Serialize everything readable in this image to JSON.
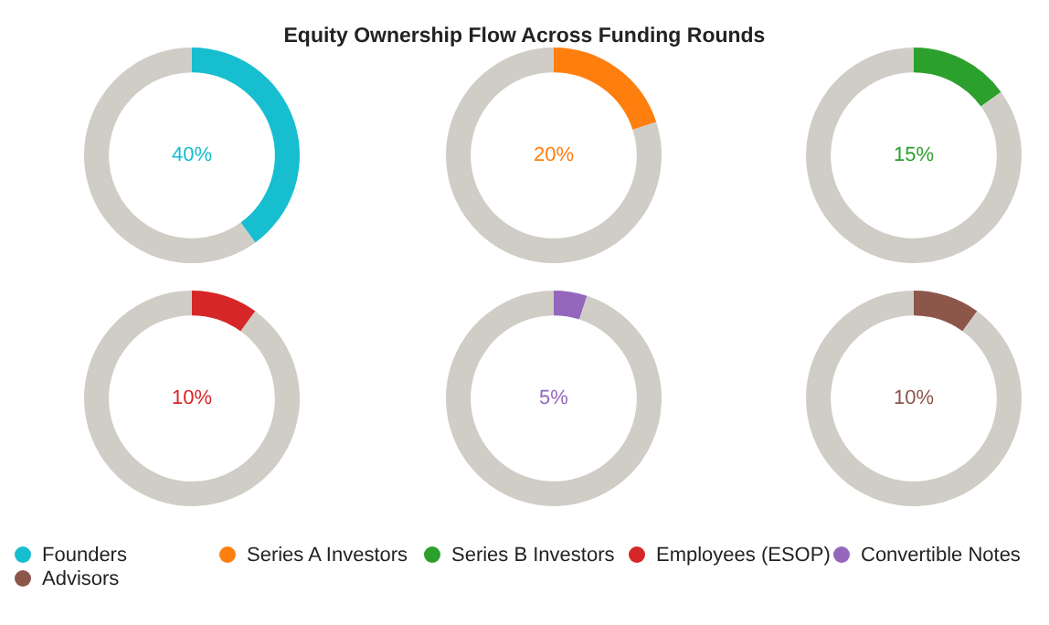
{
  "chart_data": [
    {
      "type": "donut",
      "categories": [
        "Founders",
        null
      ],
      "values": [
        40,
        60
      ],
      "colors": [
        "#17becf",
        "#d0cdc6"
      ],
      "annotations": [
        "40%"
      ],
      "legend": "bottom"
    },
    {
      "type": "donut",
      "title": "Equity Ownership Flow Across Funding Rounds",
      "categories": [
        "Series A Investors",
        null
      ],
      "values": [
        20,
        80
      ],
      "colors": [
        "#ff7f0e",
        "#d0cdc6"
      ],
      "annotations": [
        "20%"
      ],
      "legend": "bottom"
    },
    {
      "type": "donut",
      "categories": [
        "Series B Investors",
        null
      ],
      "values": [
        15,
        85
      ],
      "colors": [
        "#2ca02c",
        "#d0cdc6"
      ],
      "annotations": [
        "15%"
      ],
      "legend": "bottom"
    },
    {
      "type": "donut",
      "categories": [
        "Employees (ESOP)",
        null
      ],
      "values": [
        10,
        90
      ],
      "colors": [
        "#d62728",
        "#d0cdc6"
      ],
      "annotations": [
        "10%"
      ],
      "legend": "bottom"
    },
    {
      "type": "donut",
      "categories": [
        "Convertible Notes",
        null
      ],
      "values": [
        5,
        95
      ],
      "colors": [
        "#9467bd",
        "#d0cdc6"
      ],
      "annotations": [
        "5%"
      ],
      "legend": "bottom"
    },
    {
      "type": "donut",
      "categories": [
        "Advisors",
        null
      ],
      "values": [
        10,
        90
      ],
      "colors": [
        "#8c564b",
        "#d0cdc6"
      ],
      "annotations": [
        "10%"
      ],
      "legend": "bottom"
    }
  ]
}
